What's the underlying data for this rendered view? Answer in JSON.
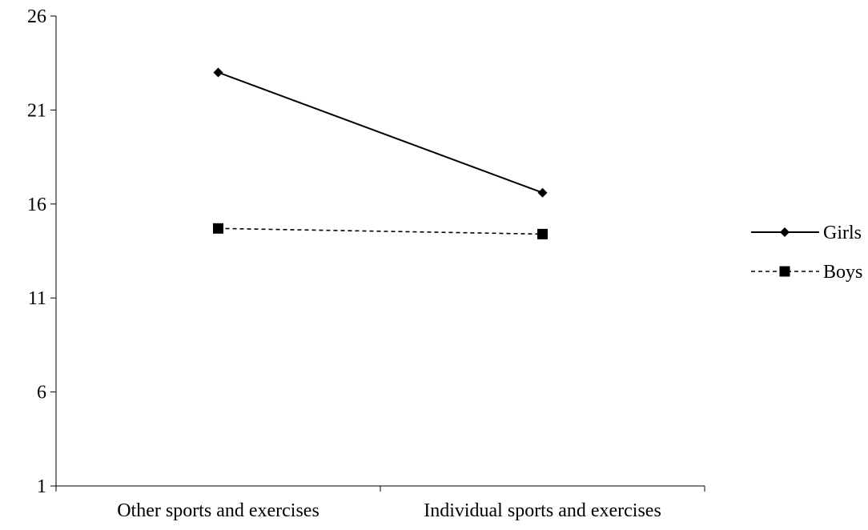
{
  "chart_data": {
    "type": "line",
    "title": "",
    "xlabel": "",
    "ylabel": "",
    "categories": [
      "Other sports and exercises",
      "Individual sports and exercises"
    ],
    "series": [
      {
        "name": "Girls",
        "values": [
          23.0,
          16.6
        ],
        "marker": "diamond",
        "line_style": "solid",
        "color": "#000000"
      },
      {
        "name": "Boys",
        "values": [
          14.7,
          14.4
        ],
        "marker": "square",
        "line_style": "dashed",
        "color": "#000000"
      }
    ],
    "ylim": [
      1,
      26
    ],
    "yticks": [
      "1",
      "6",
      "11",
      "16",
      "21",
      "26"
    ],
    "grid": false,
    "legend_position": "right"
  }
}
